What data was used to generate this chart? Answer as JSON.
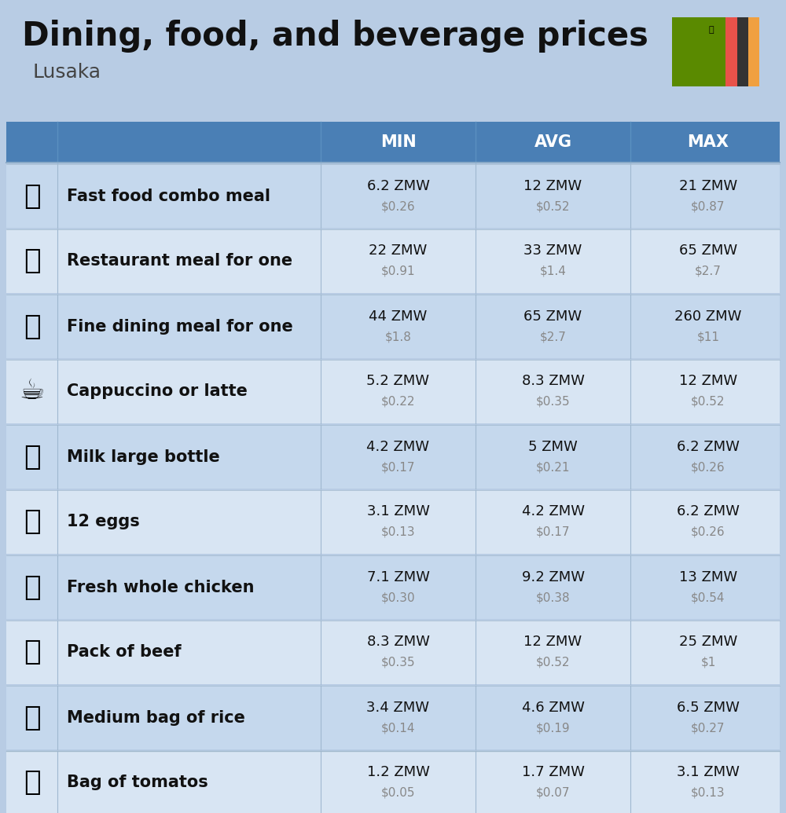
{
  "title": "Dining, food, and beverage prices",
  "subtitle": "Lusaka",
  "header_bg": "#4a7fb5",
  "header_text_color": "#ffffff",
  "page_bg": "#b8cce4",
  "row_colors": [
    "#c5d8ed",
    "#d8e5f3"
  ],
  "col_header_labels": [
    "MIN",
    "AVG",
    "MAX"
  ],
  "rows": [
    {
      "label": "Fast food combo meal",
      "min_zmw": "6.2 ZMW",
      "min_usd": "$0.26",
      "avg_zmw": "12 ZMW",
      "avg_usd": "$0.52",
      "max_zmw": "21 ZMW",
      "max_usd": "$0.87"
    },
    {
      "label": "Restaurant meal for one",
      "min_zmw": "22 ZMW",
      "min_usd": "$0.91",
      "avg_zmw": "33 ZMW",
      "avg_usd": "$1.4",
      "max_zmw": "65 ZMW",
      "max_usd": "$2.7"
    },
    {
      "label": "Fine dining meal for one",
      "min_zmw": "44 ZMW",
      "min_usd": "$1.8",
      "avg_zmw": "65 ZMW",
      "avg_usd": "$2.7",
      "max_zmw": "260 ZMW",
      "max_usd": "$11"
    },
    {
      "label": "Cappuccino or latte",
      "min_zmw": "5.2 ZMW",
      "min_usd": "$0.22",
      "avg_zmw": "8.3 ZMW",
      "avg_usd": "$0.35",
      "max_zmw": "12 ZMW",
      "max_usd": "$0.52"
    },
    {
      "label": "Milk large bottle",
      "min_zmw": "4.2 ZMW",
      "min_usd": "$0.17",
      "avg_zmw": "5 ZMW",
      "avg_usd": "$0.21",
      "max_zmw": "6.2 ZMW",
      "max_usd": "$0.26"
    },
    {
      "label": "12 eggs",
      "min_zmw": "3.1 ZMW",
      "min_usd": "$0.13",
      "avg_zmw": "4.2 ZMW",
      "avg_usd": "$0.17",
      "max_zmw": "6.2 ZMW",
      "max_usd": "$0.26"
    },
    {
      "label": "Fresh whole chicken",
      "min_zmw": "7.1 ZMW",
      "min_usd": "$0.30",
      "avg_zmw": "9.2 ZMW",
      "avg_usd": "$0.38",
      "max_zmw": "13 ZMW",
      "max_usd": "$0.54"
    },
    {
      "label": "Pack of beef",
      "min_zmw": "8.3 ZMW",
      "min_usd": "$0.35",
      "avg_zmw": "12 ZMW",
      "avg_usd": "$0.52",
      "max_zmw": "25 ZMW",
      "max_usd": "$1"
    },
    {
      "label": "Medium bag of rice",
      "min_zmw": "3.4 ZMW",
      "min_usd": "$0.14",
      "avg_zmw": "4.6 ZMW",
      "avg_usd": "$0.19",
      "max_zmw": "6.5 ZMW",
      "max_usd": "$0.27"
    },
    {
      "label": "Bag of tomatos",
      "min_zmw": "1.2 ZMW",
      "min_usd": "$0.05",
      "avg_zmw": "1.7 ZMW",
      "avg_usd": "$0.07",
      "max_zmw": "3.1 ZMW",
      "max_usd": "$0.13"
    }
  ],
  "icon_texts": [
    "🍔",
    "🍳",
    "🍽",
    "☕",
    "🥛",
    "🥚",
    "🍗",
    "🥩",
    "🍚",
    "🍅"
  ],
  "flag_colors": {
    "green": "#5a8a00",
    "red": "#e8524a",
    "black": "#333333",
    "orange": "#f0a040"
  }
}
